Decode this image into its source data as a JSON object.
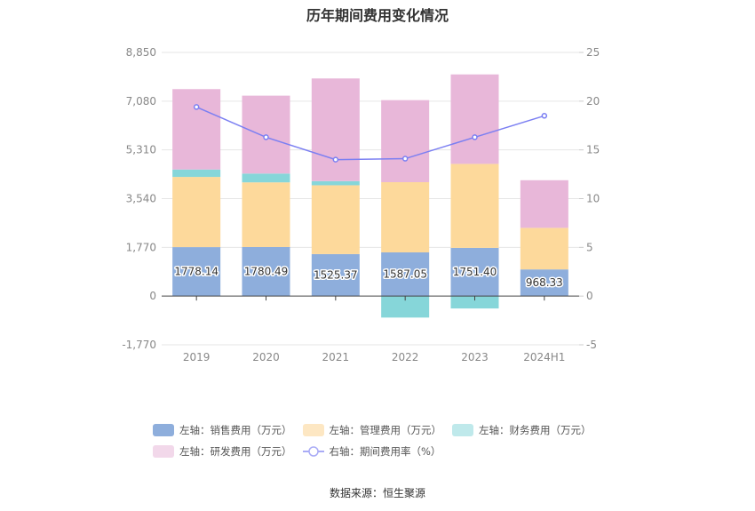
{
  "chart_data": {
    "type": "bar",
    "title": "历年期间费用变化情况",
    "categories": [
      "2019",
      "2020",
      "2021",
      "2022",
      "2023",
      "2024H1"
    ],
    "left_axis": {
      "ylim": [
        -1770,
        8850
      ],
      "ticks": [
        8850,
        7080,
        5310,
        3540,
        1770,
        0,
        -1770
      ],
      "tick_labels": [
        "8,850",
        "7,080",
        "5,310",
        "3,540",
        "1,770",
        "0",
        "-1,770"
      ]
    },
    "right_axis": {
      "ylim": [
        -5,
        25
      ],
      "ticks": [
        25,
        20,
        15,
        10,
        5,
        0,
        -5
      ],
      "tick_labels": [
        "25",
        "20",
        "15",
        "10",
        "5",
        "0",
        "-5"
      ]
    },
    "series": [
      {
        "name": "左轴：销售费用（万元）",
        "kind": "bar",
        "axis": "left",
        "color": "#8eaedc",
        "values": [
          1778.14,
          1780.49,
          1525.37,
          1587.05,
          1751.4,
          968.33
        ],
        "labels": [
          "1778.14",
          "1780.49",
          "1525.37",
          "1587.05",
          "1751.40",
          "968.33"
        ]
      },
      {
        "name": "左轴：管理费用（万元）",
        "kind": "bar",
        "axis": "left",
        "color": "#fdd99b",
        "values": [
          2550,
          2350,
          2500,
          2550,
          3050,
          1510
        ]
      },
      {
        "name": "左轴：财务费用（万元）",
        "kind": "bar",
        "axis": "left",
        "color": "#86d6d9",
        "values": [
          270,
          320,
          150,
          -780,
          -450,
          0
        ]
      },
      {
        "name": "左轴：研发费用（万元）",
        "kind": "bar",
        "axis": "left",
        "color": "#e8b7d9",
        "values": [
          2920,
          2830,
          3730,
          2980,
          3250,
          1730
        ]
      },
      {
        "name": "右轴：期间费用率（%）",
        "kind": "line",
        "axis": "right",
        "color": "#7b7ff2",
        "values": [
          19.4,
          16.3,
          14.0,
          14.1,
          16.3,
          18.5
        ]
      }
    ],
    "grid": true,
    "legend_position": "bottom"
  },
  "source": "数据来源：恒生聚源"
}
